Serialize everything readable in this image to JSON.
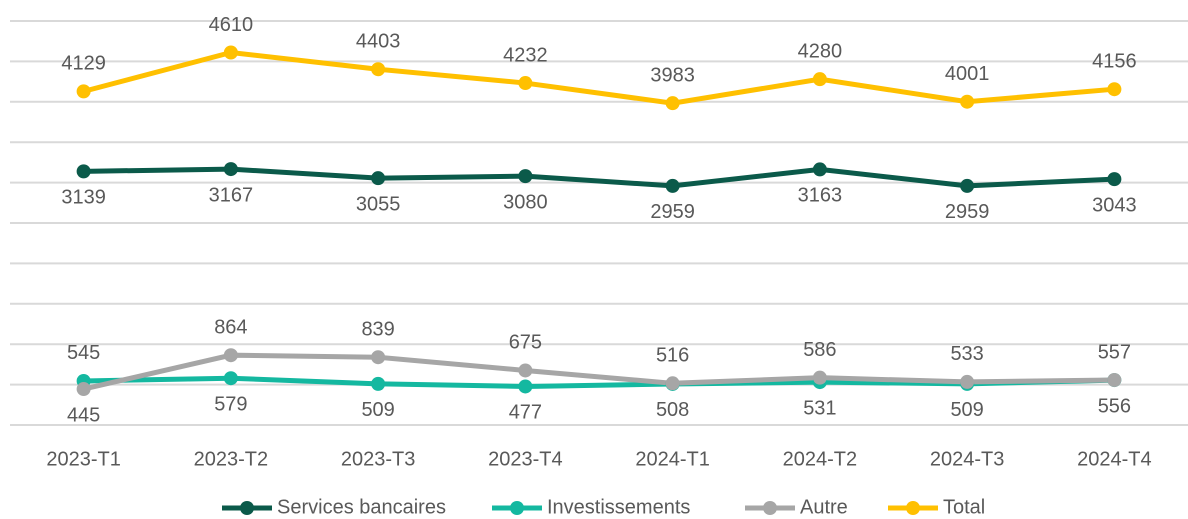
{
  "chart_data": {
    "type": "line",
    "categories": [
      "2023-T1",
      "2023-T2",
      "2023-T3",
      "2023-T4",
      "2024-T1",
      "2024-T2",
      "2024-T3",
      "2024-T4"
    ],
    "series": [
      {
        "name": "Services bancaires",
        "color": "#0b5a4a",
        "values": [
          3139,
          3167,
          3055,
          3080,
          2959,
          3163,
          2959,
          3043
        ]
      },
      {
        "name": "Investissements",
        "color": "#14b8a0",
        "values": [
          545,
          579,
          509,
          477,
          508,
          531,
          509,
          556
        ]
      },
      {
        "name": "Autre",
        "color": "#a6a6a6",
        "values": [
          445,
          864,
          839,
          675,
          516,
          586,
          533,
          557
        ]
      },
      {
        "name": "Total",
        "color": "#ffc000",
        "values": [
          4129,
          4610,
          4403,
          4232,
          3983,
          4280,
          4001,
          4156
        ]
      }
    ],
    "ylim": [
      0,
      5000
    ],
    "yticks": [
      0,
      500,
      1000,
      1500,
      2000,
      2500,
      3000,
      3500,
      4000,
      4500,
      5000
    ],
    "grid": true,
    "legend": "bottom"
  }
}
